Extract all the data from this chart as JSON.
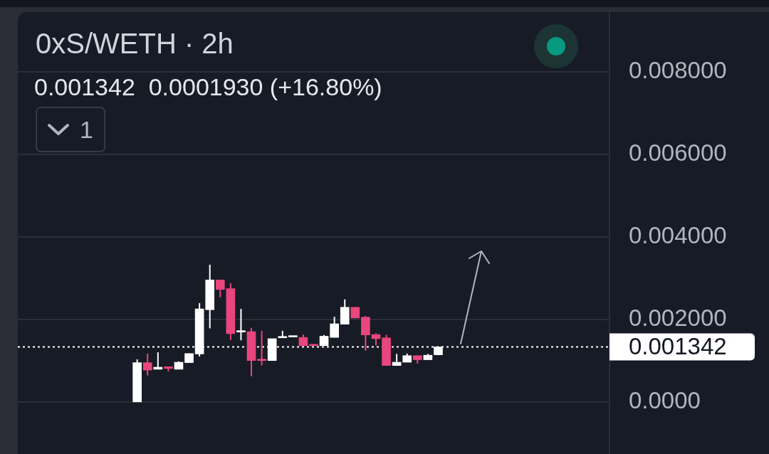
{
  "chart_data": {
    "type": "candlestick",
    "title": "0xS/WETH · 2h",
    "subtitle": "0.001342  0.0001930 (+16.80%)",
    "annotations": [
      "1"
    ],
    "categories": [
      null,
      null,
      null,
      null,
      null,
      null,
      null,
      null,
      null,
      null,
      null,
      null,
      null,
      null,
      null,
      null,
      null,
      null,
      null,
      null,
      null,
      null,
      null,
      null,
      null,
      null,
      null,
      null,
      null,
      null,
      null,
      null,
      null,
      null,
      null,
      null,
      null,
      null,
      null,
      null,
      null,
      null,
      null,
      null,
      null,
      null,
      null,
      null,
      null,
      null,
      null,
      null,
      null,
      null,
      null,
      null,
      null
    ],
    "ohlc": [
      null,
      null,
      null,
      null,
      null,
      null,
      null,
      null,
      null,
      null,
      null,
      [
        1e-05,
        0.00104,
        1e-05,
        0.00096
      ],
      [
        0.00096,
        0.00118,
        0.00065,
        0.00078
      ],
      [
        0.0008,
        0.00121,
        0.0008,
        0.00085
      ],
      [
        0.00086,
        0.00087,
        0.00075,
        0.00082
      ],
      [
        0.0008,
        0.00099,
        0.0008,
        0.00097
      ],
      [
        0.00096,
        0.00118,
        0.00096,
        0.00118
      ],
      [
        0.00117,
        0.0024,
        0.00111,
        0.00226
      ],
      [
        0.00224,
        0.00333,
        0.00179,
        0.00296
      ],
      [
        0.00296,
        0.00297,
        0.00254,
        0.00273
      ],
      [
        0.00275,
        0.00288,
        0.00151,
        0.00166
      ],
      [
        0.0017,
        0.00226,
        0.0015,
        0.00172
      ],
      [
        0.00171,
        0.0018,
        0.00063,
        0.00101
      ],
      [
        0.00104,
        0.00173,
        0.00089,
        0.00101
      ],
      [
        0.00101,
        0.00154,
        0.00101,
        0.00154
      ],
      [
        0.00156,
        0.00173,
        0.00156,
        0.00157
      ],
      [
        0.00158,
        0.00159,
        0.00158,
        0.00159
      ],
      [
        0.00157,
        0.00164,
        0.00137,
        0.00137
      ],
      [
        0.0014,
        0.0014,
        0.00137,
        0.00137
      ],
      [
        0.00137,
        0.00163,
        0.00137,
        0.0016
      ],
      [
        0.00157,
        0.00207,
        0.00157,
        0.0019
      ],
      [
        0.00189,
        0.00249,
        0.00189,
        0.0023
      ],
      [
        0.0023,
        0.0023,
        0.00203,
        0.00204
      ],
      [
        0.00206,
        0.00209,
        0.00125,
        0.00163
      ],
      [
        0.00164,
        0.00167,
        0.00138,
        0.00154
      ],
      [
        0.00156,
        0.00163,
        0.00089,
        0.00089
      ],
      [
        0.00089,
        0.00117,
        0.00089,
        0.00097
      ],
      [
        0.00097,
        0.00118,
        0.00097,
        0.00113
      ],
      [
        0.00113,
        0.00113,
        0.00094,
        0.00103
      ],
      [
        0.00103,
        0.00117,
        0.00103,
        0.00114
      ],
      [
        0.00115,
        0.001342,
        0.00114,
        0.001342
      ],
      null,
      null,
      null,
      null,
      null,
      null,
      null,
      null,
      null,
      null,
      null,
      null,
      null,
      null,
      null,
      null
    ],
    "colors": [
      null,
      null,
      null,
      null,
      null,
      null,
      null,
      null,
      null,
      null,
      null,
      "#ffffff",
      "#e8467c",
      "#ffffff",
      "#e8467c",
      "#ffffff",
      "#ffffff",
      "#ffffff",
      "#ffffff",
      "#e8467c",
      "#e8467c",
      "#ffffff",
      "#e8467c",
      "#e8467c",
      "#ffffff",
      "#ffffff",
      "#ffffff",
      "#e8467c",
      "#e8467c",
      "#ffffff",
      "#ffffff",
      "#ffffff",
      "#e8467c",
      "#e8467c",
      "#e8467c",
      "#e8467c",
      "#ffffff",
      "#ffffff",
      "#e8467c",
      "#ffffff",
      "#ffffff",
      null,
      null,
      null,
      null,
      null,
      null,
      null,
      null,
      null,
      null,
      null,
      null,
      null,
      null,
      null,
      null
    ],
    "ylim": [
      -0.00125,
      0.00944
    ],
    "yticks": [
      {
        "value": 0,
        "label": "0.0000"
      },
      {
        "value": 0.002,
        "label": "0.002000"
      },
      {
        "value": 0.004,
        "label": "0.004000"
      },
      {
        "value": 0.006,
        "label": "0.006000"
      },
      {
        "value": 0.008,
        "label": "0.008000"
      }
    ],
    "ref_lines": [
      {
        "axis": "y",
        "value": 0.001342,
        "label": "0.001342",
        "color": "#ffffff",
        "line_style": "dotted"
      }
    ],
    "grid": "y",
    "tick_labels": "y"
  }
}
